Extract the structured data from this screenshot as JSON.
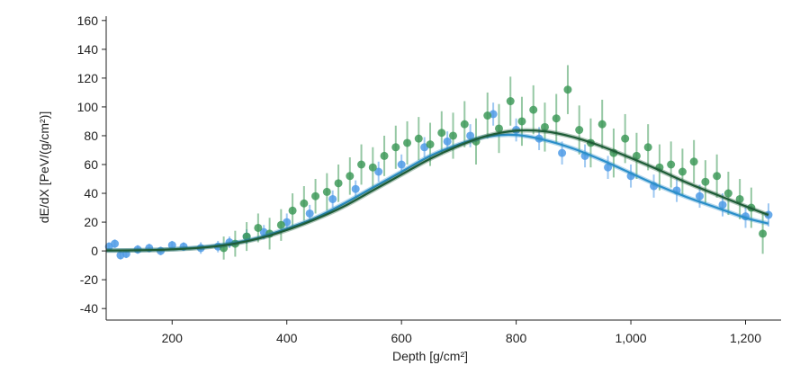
{
  "chart_data": {
    "type": "scatter",
    "xlabel": "Depth [g/cm²]",
    "ylabel": "dE/dX [PeV/(g/cm²)]",
    "xlim": [
      85,
      1262
    ],
    "ylim": [
      -48,
      163
    ],
    "xticks": [
      200,
      400,
      600,
      800,
      1000,
      1200
    ],
    "xtick_labels": [
      "200",
      "400",
      "600",
      "800",
      "1,000",
      "1,200"
    ],
    "yticks": [
      -40,
      -20,
      0,
      20,
      40,
      60,
      80,
      100,
      120,
      140,
      160
    ],
    "ytick_labels": [
      "-40",
      "-20",
      "0",
      "20",
      "40",
      "60",
      "80",
      "100",
      "120",
      "140",
      "160"
    ],
    "grid": false,
    "legend": "none",
    "series": [
      {
        "color": "#4f9be6",
        "kind": "points_with_error_bars",
        "x": [
          90,
          100,
          110,
          120,
          140,
          160,
          180,
          200,
          220,
          250,
          280,
          300,
          330,
          360,
          400,
          440,
          480,
          520,
          560,
          600,
          640,
          680,
          720,
          760,
          800,
          840,
          880,
          920,
          960,
          1000,
          1040,
          1080,
          1120,
          1160,
          1200,
          1240
        ],
        "y": [
          3,
          5,
          -3,
          -2,
          1,
          2,
          0,
          4,
          3,
          2,
          3,
          6,
          10,
          13,
          20,
          26,
          36,
          43,
          55,
          60,
          72,
          76,
          80,
          95,
          84,
          78,
          68,
          66,
          58,
          52,
          45,
          42,
          38,
          32,
          24,
          25
        ],
        "yerr": [
          3,
          3,
          3,
          3,
          3,
          3,
          3,
          3,
          3,
          4,
          4,
          4,
          5,
          5,
          6,
          6,
          6,
          6,
          7,
          7,
          7,
          7,
          8,
          8,
          8,
          8,
          8,
          8,
          8,
          8,
          8,
          8,
          8,
          8,
          8,
          8
        ]
      },
      {
        "color": "#3f9a5a",
        "kind": "points_with_error_bars",
        "x": [
          290,
          310,
          330,
          350,
          370,
          390,
          410,
          430,
          450,
          470,
          490,
          510,
          530,
          550,
          570,
          590,
          610,
          630,
          650,
          670,
          690,
          710,
          730,
          750,
          770,
          790,
          810,
          830,
          850,
          870,
          890,
          910,
          930,
          950,
          970,
          990,
          1010,
          1030,
          1050,
          1070,
          1090,
          1110,
          1130,
          1150,
          1170,
          1190,
          1210,
          1230
        ],
        "y": [
          2,
          5,
          10,
          16,
          12,
          18,
          28,
          33,
          38,
          41,
          47,
          52,
          60,
          58,
          66,
          72,
          75,
          78,
          74,
          82,
          80,
          88,
          76,
          94,
          85,
          104,
          90,
          98,
          86,
          92,
          112,
          84,
          75,
          88,
          68,
          78,
          66,
          72,
          58,
          60,
          55,
          62,
          48,
          52,
          40,
          36,
          30,
          12
        ],
        "yerr": [
          8,
          9,
          10,
          10,
          11,
          11,
          12,
          12,
          12,
          13,
          13,
          13,
          14,
          14,
          14,
          15,
          15,
          15,
          15,
          15,
          16,
          16,
          16,
          16,
          17,
          17,
          17,
          17,
          17,
          17,
          17,
          17,
          17,
          17,
          17,
          17,
          16,
          16,
          16,
          16,
          16,
          15,
          15,
          15,
          15,
          14,
          14,
          14
        ]
      },
      {
        "color": "#2a8ec9",
        "kind": "fit_curve",
        "x": [
          85,
          150,
          200,
          250,
          300,
          350,
          400,
          450,
          500,
          550,
          600,
          650,
          700,
          750,
          800,
          850,
          900,
          950,
          1000,
          1050,
          1100,
          1150,
          1200,
          1240
        ],
        "y": [
          0.3,
          0.5,
          1.2,
          2.5,
          5,
          9,
          15.5,
          23,
          33,
          44,
          55,
          66,
          74,
          79.5,
          80.5,
          77,
          71,
          63,
          54,
          45,
          37,
          30,
          23,
          19
        ]
      },
      {
        "color": "#1e5c37",
        "kind": "fit_curve",
        "x": [
          85,
          150,
          200,
          250,
          300,
          350,
          400,
          450,
          500,
          550,
          600,
          650,
          700,
          750,
          800,
          850,
          900,
          950,
          1000,
          1050,
          1100,
          1150,
          1200,
          1240
        ],
        "y": [
          0.3,
          0.5,
          1.1,
          2.2,
          4.5,
          8.5,
          14.5,
          22,
          31,
          42,
          53,
          64,
          73,
          80,
          83.5,
          83,
          79,
          72.5,
          64.5,
          56,
          47,
          39,
          31,
          25
        ]
      }
    ]
  }
}
